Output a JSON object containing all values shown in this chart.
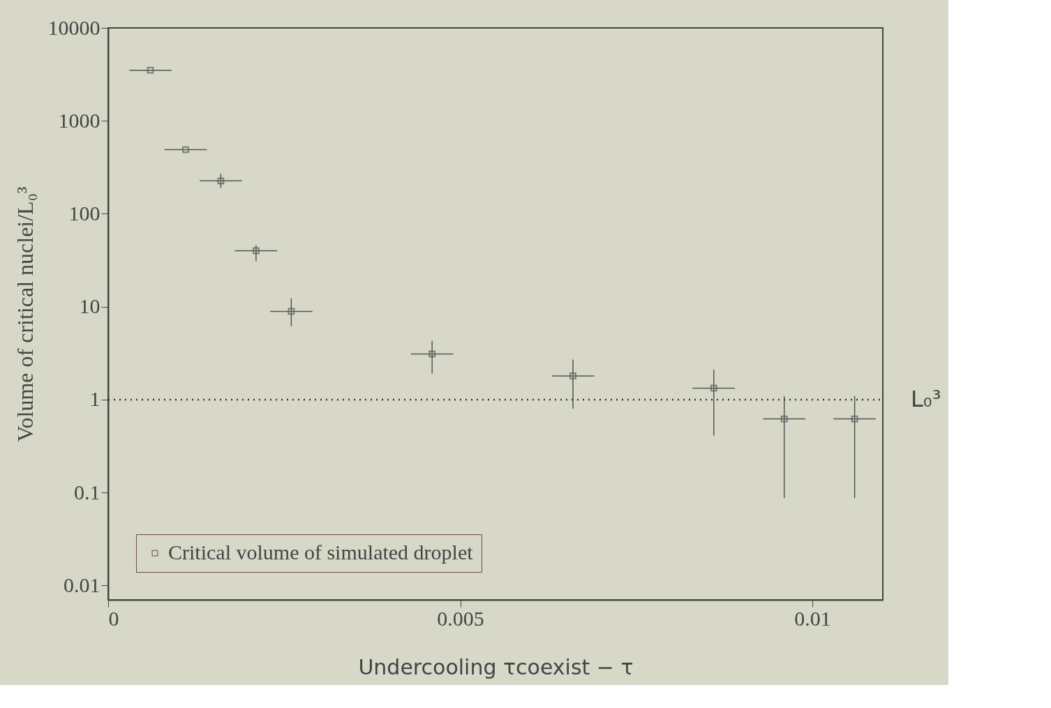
{
  "chart_data": {
    "type": "scatter",
    "xlabel": "Undercooling τcoexist − τ",
    "ylabel": "Volume of critical nuclei/L₀³",
    "x": [
      0.0006,
      0.0011,
      0.0016,
      0.0021,
      0.0026,
      0.0046,
      0.0066,
      0.0086,
      0.0096,
      0.0106
    ],
    "series": [
      {
        "name": "Critical volume of simulated droplet",
        "color": "#555555",
        "values": [
          3500,
          490,
          226,
          40,
          8.9,
          3.1,
          1.8,
          1.33,
          0.62,
          0.62
        ],
        "errors": [
          null,
          null,
          [
            190,
            270
          ],
          [
            31,
            46
          ],
          [
            6.2,
            12.3
          ],
          [
            1.9,
            4.3
          ],
          [
            0.8,
            2.7
          ],
          [
            0.41,
            2.1
          ],
          [
            0.087,
            1.09
          ],
          [
            0.087,
            1.09
          ]
        ],
        "xerrors": [
          0.0003,
          0.0003,
          0.0003,
          0.0003,
          0.0003,
          0.0003,
          0.0003,
          0.0003,
          0.0003,
          0.0003
        ]
      }
    ],
    "xlim": [
      0,
      0.011
    ],
    "xticks": [
      0,
      0.005,
      0.01
    ],
    "ylim": [
      0.007,
      10000
    ],
    "yticks": [
      0.01,
      0.1,
      1,
      10,
      100,
      1000,
      10000
    ],
    "log": "y",
    "grid": false,
    "legend": "bottom left",
    "marker": "square",
    "ref_lines": [
      {
        "axis": "y",
        "value": 1,
        "label": "L₀³",
        "line_style": "dotted",
        "color": "#333333"
      }
    ]
  }
}
